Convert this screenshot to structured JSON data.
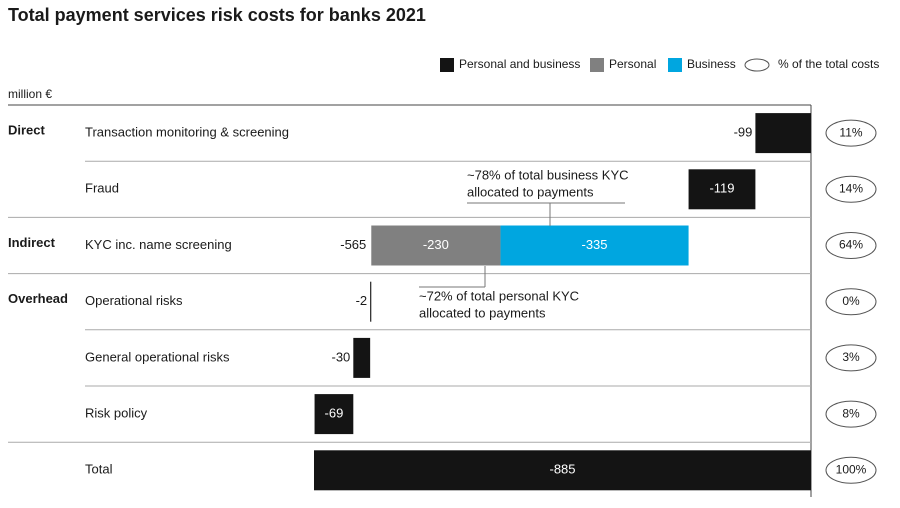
{
  "chart_data": {
    "type": "waterfall",
    "title": "Total payment services risk costs for banks 2021",
    "unit_label": "million €",
    "categories": [
      "Transaction monitoring & screening",
      "Fraud",
      "KYC inc. name screening",
      "Operational risks",
      "General operational risks",
      "Risk policy",
      "Total"
    ],
    "groups": [
      "Direct",
      null,
      "Indirect",
      "Overhead",
      null,
      null,
      null
    ],
    "series": [
      {
        "name": "Business",
        "color": "#00a6e0",
        "values": [
          null,
          null,
          -335,
          null,
          null,
          null,
          null
        ]
      },
      {
        "name": "Personal",
        "color": "#808080",
        "values": [
          null,
          null,
          -230,
          null,
          null,
          null,
          null
        ]
      },
      {
        "name": "Personal and business",
        "color": "#141414",
        "values": [
          -99,
          -119,
          null,
          -2,
          -30,
          -69,
          -885
        ]
      }
    ],
    "legend_order": [
      2,
      1,
      0
    ],
    "subtotals": [
      null,
      null,
      -565,
      null,
      null,
      null,
      null
    ],
    "share_legend": "% of the total costs",
    "share_values": [
      11,
      14,
      64,
      0,
      3,
      8,
      100
    ],
    "share_labels": [
      "11%",
      "14%",
      "64%",
      "0%",
      "3%",
      "8%",
      "100%"
    ],
    "annotations": [
      {
        "lines": [
          "~78% of total business KYC",
          "allocated to payments"
        ]
      },
      {
        "lines": [
          "~72% of total personal KYC",
          "allocated to payments"
        ]
      }
    ],
    "xlim": [
      -885,
      0
    ]
  }
}
